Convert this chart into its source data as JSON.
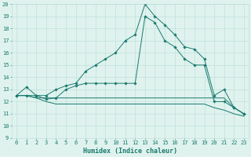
{
  "x": [
    0,
    1,
    2,
    3,
    4,
    5,
    6,
    7,
    8,
    9,
    10,
    11,
    12,
    13,
    14,
    15,
    16,
    17,
    18,
    19,
    20,
    21,
    22,
    23
  ],
  "curve_main": [
    12.5,
    13.2,
    12.5,
    12.5,
    13.0,
    13.3,
    13.5,
    14.5,
    15.0,
    15.5,
    16.0,
    17.0,
    17.5,
    20.0,
    19.0,
    18.3,
    17.5,
    16.5,
    16.3,
    15.5,
    12.5,
    13.0,
    11.5,
    11.0
  ],
  "curve2": [
    12.5,
    12.5,
    12.5,
    12.2,
    12.3,
    13.0,
    13.3,
    13.5,
    13.5,
    13.5,
    13.5,
    13.5,
    13.5,
    19.0,
    18.5,
    17.0,
    16.5,
    15.5,
    15.0,
    15.0,
    12.0,
    12.0,
    11.5,
    11.0
  ],
  "curve3": [
    12.5,
    12.5,
    12.3,
    12.3,
    12.3,
    12.3,
    12.3,
    12.3,
    12.3,
    12.3,
    12.3,
    12.3,
    12.3,
    12.3,
    12.3,
    12.3,
    12.3,
    12.3,
    12.3,
    12.3,
    12.3,
    12.3,
    11.5,
    11.0
  ],
  "curve4": [
    12.5,
    12.5,
    12.3,
    12.0,
    11.8,
    11.8,
    11.8,
    11.8,
    11.8,
    11.8,
    11.8,
    11.8,
    11.8,
    11.8,
    11.8,
    11.8,
    11.8,
    11.8,
    11.8,
    11.8,
    11.5,
    11.3,
    11.0,
    10.8
  ],
  "line_color": "#1a7a6e",
  "bg_color": "#dff2ee",
  "grid_color": "#b8ddd8",
  "xlabel": "Humidex (Indice chaleur)",
  "ylim": [
    9,
    20
  ],
  "xlim": [
    -0.5,
    23.5
  ],
  "yticks": [
    9,
    10,
    11,
    12,
    13,
    14,
    15,
    16,
    17,
    18,
    19,
    20
  ],
  "xticks": [
    0,
    1,
    2,
    3,
    4,
    5,
    6,
    7,
    8,
    9,
    10,
    11,
    12,
    13,
    14,
    15,
    16,
    17,
    18,
    19,
    20,
    21,
    22,
    23
  ],
  "tick_fontsize": 5.0,
  "xlabel_fontsize": 6.0
}
